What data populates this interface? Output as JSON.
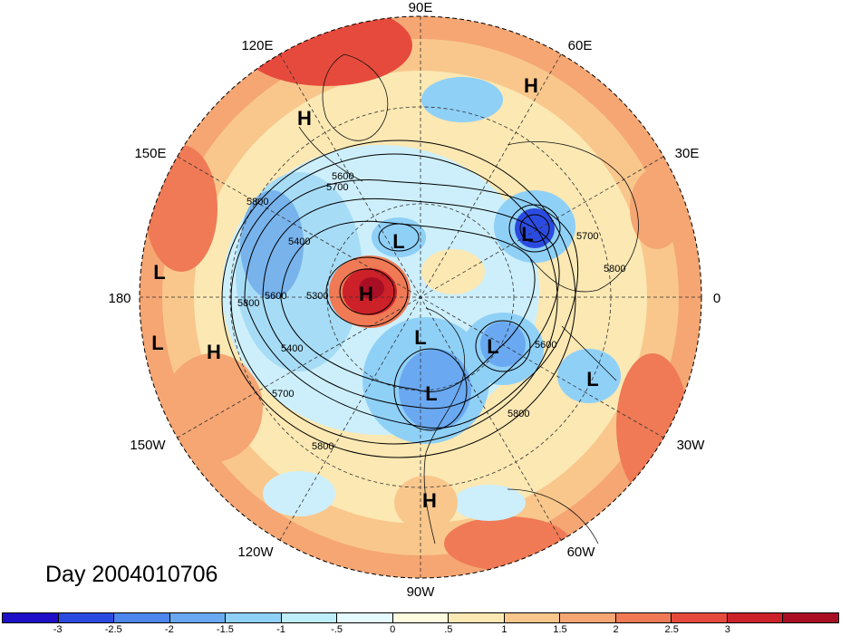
{
  "map": {
    "projection": "north-polar-stereographic",
    "longitude_labels": {
      "e90": "90E",
      "e60": "60E",
      "e30": "30E",
      "zero": "0",
      "w30": "30W",
      "w60": "60W",
      "w90": "90W",
      "w120": "120W",
      "w150": "150W",
      "d180": "180",
      "e150": "150E",
      "e120": "120E"
    },
    "contour_labels": [
      "5700",
      "5600",
      "5800",
      "5400",
      "5300",
      "5600",
      "5800",
      "5400",
      "5700",
      "5800",
      "5600",
      "5800",
      "5700",
      "5800"
    ],
    "pressure_centers": [
      "H",
      "H",
      "L",
      "L",
      "L",
      "H",
      "L",
      "L",
      "L",
      "L",
      "H",
      "L",
      "H"
    ],
    "colors": {
      "ocean_bg": "#f7d9ae",
      "deep_blue": "#2f46c8",
      "mid_blue": "#78b3ec",
      "light_blue": "#c8e7f7",
      "pale": "#fff8dc",
      "light_orange": "#f9c78c",
      "orange": "#f28a5a",
      "red": "#e34a3a",
      "dark_red": "#c21f22"
    }
  },
  "day_label": "Day 2004010706",
  "colorbar": {
    "colors": [
      "#1f10c8",
      "#2b4be0",
      "#4d86ec",
      "#6aa9f1",
      "#8fd0f7",
      "#bfeefb",
      "#e6fbff",
      "#fffbe0",
      "#fbe8b3",
      "#f9c78c",
      "#f5a673",
      "#ef7a55",
      "#e64a3c",
      "#cc2128",
      "#a80f25"
    ],
    "labels": [
      "-3",
      "-2.5",
      "-2",
      "-1.5",
      "-1",
      "-.5",
      "0",
      ".5",
      "1",
      "1.5",
      "2",
      "2.5",
      "3"
    ]
  }
}
